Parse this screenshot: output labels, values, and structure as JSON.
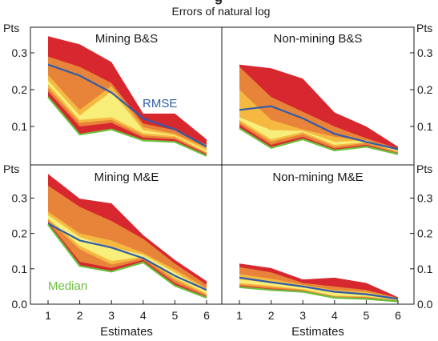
{
  "title_partial": "g",
  "subtitle": "Errors of natural log",
  "colors": {
    "band_outer": "#d7282f",
    "band_mid": "#e8833a",
    "band_inner": "#f5b942",
    "band_core": "#f8ee7a",
    "rmse": "#2f5ea8",
    "median": "#6cbf3c"
  },
  "chart_data": [
    {
      "type": "area",
      "title": "Mining B&S",
      "x": [
        1,
        2,
        3,
        4,
        5,
        6
      ],
      "xlabel": "",
      "ylabel": "Pts",
      "ylim": [
        0,
        0.35
      ],
      "yticks": [
        "0.1",
        "0.2",
        "0.3"
      ],
      "bands": [
        {
          "lower": [
            0.18,
            0.078,
            0.092,
            0.062,
            0.058,
            0.02
          ],
          "upper": [
            0.345,
            0.323,
            0.275,
            0.135,
            0.135,
            0.065
          ]
        },
        {
          "lower": [
            0.195,
            0.1,
            0.11,
            0.07,
            0.065,
            0.025
          ],
          "upper": [
            0.29,
            0.262,
            0.218,
            0.108,
            0.09,
            0.05
          ]
        },
        {
          "lower": [
            0.205,
            0.11,
            0.118,
            0.076,
            0.07,
            0.028
          ],
          "upper": [
            0.24,
            0.145,
            0.21,
            0.098,
            0.08,
            0.042
          ]
        },
        {
          "lower": [
            0.215,
            0.118,
            0.125,
            0.082,
            0.074,
            0.03
          ],
          "upper": [
            0.225,
            0.13,
            0.195,
            0.09,
            0.076,
            0.035
          ]
        }
      ],
      "series": [
        {
          "name": "RMSE",
          "values": [
            0.268,
            0.238,
            0.192,
            0.122,
            0.092,
            0.045
          ]
        },
        {
          "name": "Median",
          "values": [
            0.18,
            0.078,
            0.092,
            0.062,
            0.058,
            0.02
          ]
        }
      ],
      "annotations": [
        "RMSE"
      ]
    },
    {
      "type": "area",
      "title": "Non-mining B&S",
      "x": [
        1,
        2,
        3,
        4,
        5,
        6
      ],
      "xlabel": "",
      "ylabel": "Pts",
      "ylim": [
        0,
        0.35
      ],
      "yticks": [
        "0.1",
        "0.2",
        "0.3"
      ],
      "bands": [
        {
          "lower": [
            0.095,
            0.042,
            0.065,
            0.035,
            0.045,
            0.025
          ],
          "upper": [
            0.268,
            0.258,
            0.23,
            0.138,
            0.1,
            0.045
          ]
        },
        {
          "lower": [
            0.105,
            0.05,
            0.072,
            0.04,
            0.05,
            0.028
          ],
          "upper": [
            0.262,
            0.18,
            0.14,
            0.1,
            0.068,
            0.04
          ]
        },
        {
          "lower": [
            0.112,
            0.058,
            0.08,
            0.045,
            0.055,
            0.03
          ],
          "upper": [
            0.2,
            0.118,
            0.092,
            0.072,
            0.06,
            0.036
          ]
        },
        {
          "lower": [
            0.118,
            0.065,
            0.085,
            0.05,
            0.058,
            0.032
          ],
          "upper": [
            0.125,
            0.09,
            0.088,
            0.058,
            0.062,
            0.034
          ]
        }
      ],
      "series": [
        {
          "name": "RMSE",
          "values": [
            0.145,
            0.155,
            0.122,
            0.08,
            0.058,
            0.038
          ]
        },
        {
          "name": "Median",
          "values": [
            0.095,
            0.042,
            0.065,
            0.035,
            0.045,
            0.025
          ]
        }
      ],
      "annotations": []
    },
    {
      "type": "area",
      "title": "Mining M&E",
      "x": [
        1,
        2,
        3,
        4,
        5,
        6
      ],
      "xlabel": "Estimates",
      "xticks": [
        "1",
        "2",
        "3",
        "4",
        "5",
        "6"
      ],
      "ylabel": "Pts",
      "ylim": [
        0,
        0.38
      ],
      "yticks": [
        "0.0",
        "0.1",
        "0.2",
        "0.3"
      ],
      "bands": [
        {
          "lower": [
            0.225,
            0.108,
            0.092,
            0.118,
            0.052,
            0.018
          ],
          "upper": [
            0.368,
            0.298,
            0.285,
            0.195,
            0.125,
            0.065
          ]
        },
        {
          "lower": [
            0.232,
            0.12,
            0.102,
            0.125,
            0.06,
            0.022
          ],
          "upper": [
            0.335,
            0.275,
            0.235,
            0.185,
            0.115,
            0.055
          ]
        },
        {
          "lower": [
            0.238,
            0.155,
            0.112,
            0.13,
            0.068,
            0.026
          ],
          "upper": [
            0.262,
            0.2,
            0.18,
            0.145,
            0.098,
            0.045
          ]
        },
        {
          "lower": [
            0.242,
            0.165,
            0.122,
            0.134,
            0.074,
            0.03
          ],
          "upper": [
            0.252,
            0.19,
            0.16,
            0.14,
            0.09,
            0.038
          ]
        }
      ],
      "series": [
        {
          "name": "RMSE",
          "values": [
            0.228,
            0.18,
            0.16,
            0.13,
            0.08,
            0.04
          ]
        },
        {
          "name": "Median",
          "values": [
            0.225,
            0.108,
            0.092,
            0.118,
            0.052,
            0.018
          ]
        }
      ],
      "annotations": [
        "Median"
      ]
    },
    {
      "type": "area",
      "title": "Non-mining M&E",
      "x": [
        1,
        2,
        3,
        4,
        5,
        6
      ],
      "xlabel": "Estimates",
      "xticks": [
        "1",
        "2",
        "3",
        "4",
        "5",
        "6"
      ],
      "ylabel": "Pts",
      "ylim": [
        0,
        0.38
      ],
      "yticks": [
        "0.0",
        "0.1",
        "0.2",
        "0.3"
      ],
      "bands": [
        {
          "lower": [
            0.048,
            0.04,
            0.035,
            0.018,
            0.015,
            0.008
          ],
          "upper": [
            0.115,
            0.102,
            0.07,
            0.075,
            0.06,
            0.02
          ]
        },
        {
          "lower": [
            0.052,
            0.044,
            0.038,
            0.02,
            0.018,
            0.01
          ],
          "upper": [
            0.105,
            0.09,
            0.06,
            0.05,
            0.04,
            0.018
          ]
        },
        {
          "lower": [
            0.056,
            0.048,
            0.04,
            0.022,
            0.02,
            0.011
          ],
          "upper": [
            0.085,
            0.072,
            0.055,
            0.04,
            0.035,
            0.016
          ]
        },
        {
          "lower": [
            0.06,
            0.052,
            0.042,
            0.024,
            0.022,
            0.012
          ],
          "upper": [
            0.07,
            0.06,
            0.05,
            0.032,
            0.03,
            0.014
          ]
        }
      ],
      "series": [
        {
          "name": "RMSE",
          "values": [
            0.075,
            0.062,
            0.05,
            0.035,
            0.028,
            0.015
          ]
        },
        {
          "name": "Median",
          "values": [
            0.048,
            0.04,
            0.035,
            0.018,
            0.015,
            0.008
          ]
        }
      ],
      "annotations": []
    }
  ]
}
